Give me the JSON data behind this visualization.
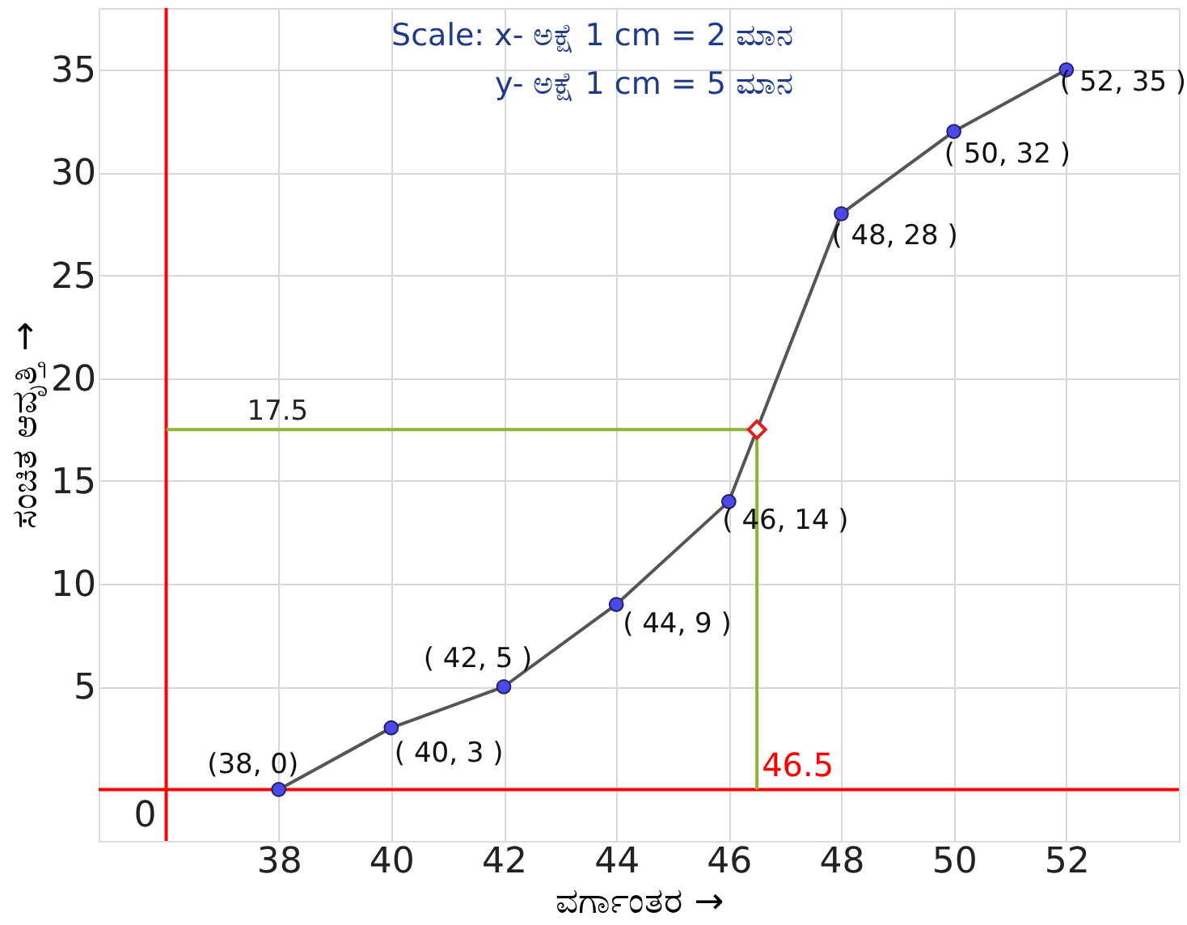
{
  "chart_data": {
    "type": "line",
    "xlabel": "ವರ್ಗಾಂತರ →",
    "ylabel": "ಸಂಚಿತ ಆವೃತ್ತಿ →",
    "x": [
      38,
      40,
      42,
      44,
      46,
      48,
      50,
      52
    ],
    "series": [
      {
        "color": "#555555",
        "marker": "circle",
        "values": [
          0,
          3,
          5,
          9,
          14,
          28,
          32,
          35
        ]
      },
      {
        "type": "scatter",
        "color": "#e02020",
        "marker": "diamond",
        "x": [
          46.5
        ],
        "values": [
          17.5
        ]
      }
    ],
    "xlim": [
      34.8,
      54
    ],
    "ylim": [
      -2.5,
      38
    ],
    "xticks": [
      38,
      40,
      42,
      44,
      46,
      48,
      50,
      52
    ],
    "yticks": [
      5,
      10,
      15,
      20,
      25,
      30,
      35
    ],
    "grid": true,
    "ref_lines": [
      {
        "axis": "x",
        "value": 36,
        "color": "#ff0000"
      },
      {
        "axis": "y",
        "value": 0,
        "color": "#ff0000"
      },
      {
        "axis": "y",
        "value": 17.5,
        "label": "17.5",
        "color": "#8db33a"
      },
      {
        "axis": "x",
        "value": 46.5,
        "label": "46.5",
        "color": "#8db33a"
      }
    ],
    "annotations": [
      "Scale: x- ಅಕ್ಷೆ 1 cm = 2 ಮಾನ",
      "y- ಅಕ್ಷೆ 1 cm = 5 ಮಾನ",
      "0",
      {
        "text": "(38, 0)",
        "x": 38,
        "y": 0
      },
      {
        "text": "( 40, 3 )",
        "x": 40,
        "y": 3
      },
      {
        "text": "( 42, 5 )",
        "x": 42,
        "y": 5
      },
      {
        "text": "( 44, 9 )",
        "x": 44,
        "y": 9
      },
      {
        "text": "( 46, 14 )",
        "x": 46,
        "y": 14
      },
      {
        "text": "( 48, 28 )",
        "x": 48,
        "y": 28
      },
      {
        "text": "( 50, 32 )",
        "x": 50,
        "y": 32
      },
      {
        "text": "( 52, 35 )",
        "x": 52,
        "y": 35
      }
    ]
  }
}
